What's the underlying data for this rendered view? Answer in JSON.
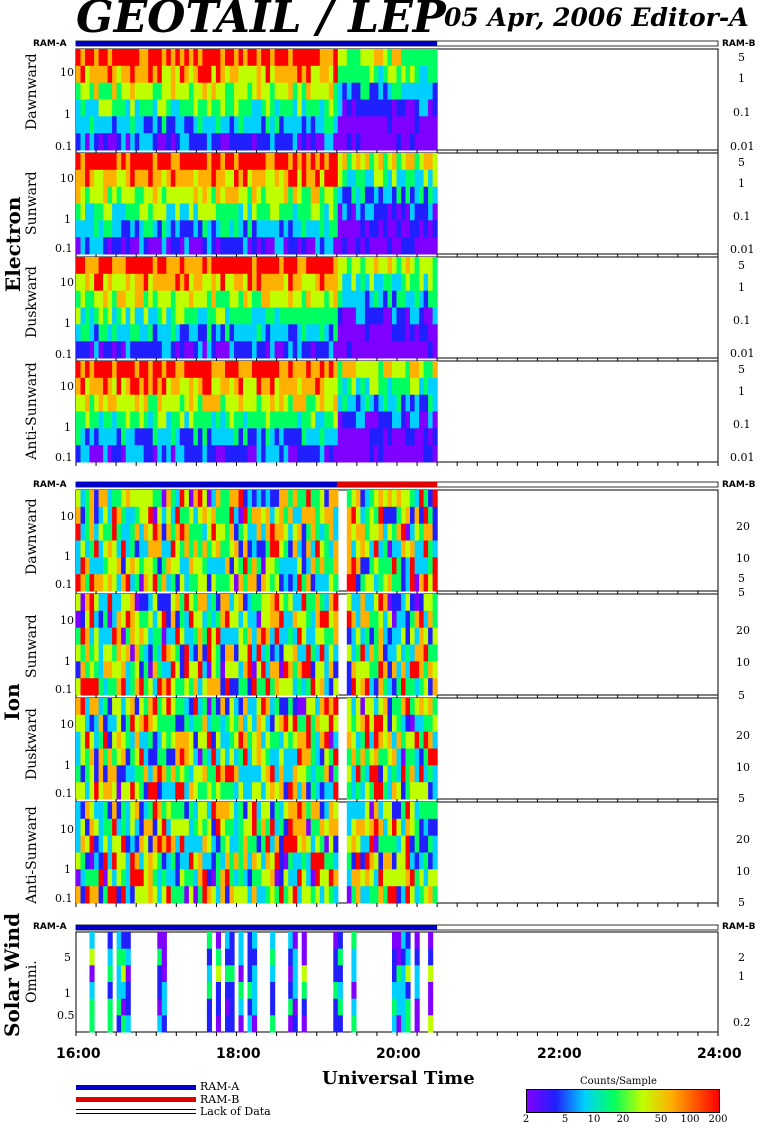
{
  "header": {
    "title": "GEOTAIL / LEP",
    "subtitle": "05 Apr, 2006   Editor-A"
  },
  "groups": [
    {
      "name": "Electron",
      "panels": [
        "Dawnward",
        "Sunward",
        "Duskward",
        "Anti-Sunward"
      ],
      "left_ticks": [
        "10",
        "1",
        "0.1"
      ],
      "right_ticks": [
        "5",
        "1",
        "0.1",
        "0.01"
      ]
    },
    {
      "name": "Ion",
      "panels": [
        "Dawnward",
        "Sunward",
        "Duskward",
        "Anti-Sunward"
      ],
      "left_ticks": [
        "10",
        "1",
        "0.1"
      ],
      "right_ticks": [
        "20",
        "10",
        "5"
      ]
    },
    {
      "name": "Solar Wind",
      "panels": [
        "Omni."
      ],
      "left_ticks": [
        "5",
        "1",
        "0.5"
      ],
      "right_ticks": [
        "2",
        "1",
        "0.2"
      ]
    }
  ],
  "ram": {
    "a": "RAM-A",
    "b": "RAM-B"
  },
  "x_axis": {
    "title": "Universal Time",
    "ticks": [
      "16:00",
      "18:00",
      "20:00",
      "22:00",
      "24:00"
    ],
    "range_hours": [
      16,
      24
    ],
    "data_end_hour": 20.5
  },
  "legend": {
    "ram_a": "RAM-A",
    "ram_b": "RAM-B",
    "lack": "Lack of Data",
    "ram_a_color": "#0000c8",
    "ram_b_color": "#e00000"
  },
  "colorbar": {
    "title": "Counts/Sample",
    "ticks": [
      "2",
      "5",
      "10",
      "20",
      "50",
      "100",
      "200"
    ]
  },
  "chart_data": {
    "type": "heatmap",
    "xlabel": "Universal Time",
    "x_range": [
      16,
      24
    ],
    "data_coverage_hours": [
      16,
      20.5
    ],
    "colorbar_range": [
      2,
      200
    ],
    "colorbar_scale": "log",
    "panels": [
      "Electron Dawnward",
      "Electron Sunward",
      "Electron Duskward",
      "Electron Anti-Sunward",
      "Ion Dawnward",
      "Ion Sunward",
      "Ion Duskward",
      "Ion Anti-Sunward",
      "Solar Wind Omni."
    ],
    "ion_ram_b_start_hour": 19.25
  }
}
